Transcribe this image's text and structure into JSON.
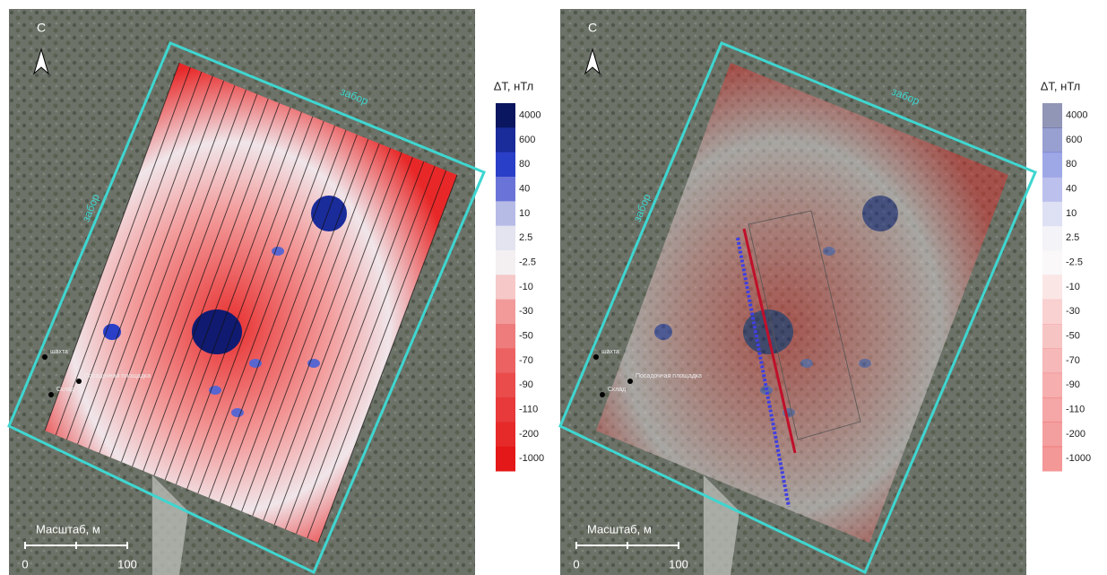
{
  "panels": [
    {
      "north": "С",
      "fence_labels": [
        "забор",
        "забор"
      ],
      "legend": {
        "title": "ΔT, нТл",
        "labels": [
          "4000",
          "600",
          "80",
          "40",
          "10",
          "2.5",
          "-2.5",
          "-10",
          "-30",
          "-50",
          "-70",
          "-90",
          "-110",
          "-200",
          "-1000"
        ]
      },
      "scale": {
        "title": "Масштаб, м",
        "ticks": [
          "0",
          "100"
        ]
      },
      "places": [
        "шахта",
        "Посадочная площадка",
        "Склад"
      ]
    },
    {
      "north": "С",
      "fence_labels": [
        "забор",
        "забор"
      ],
      "legend": {
        "title": "ΔT, нТл",
        "labels": [
          "4000",
          "600",
          "80",
          "40",
          "10",
          "2.5",
          "-2.5",
          "-10",
          "-30",
          "-50",
          "-70",
          "-90",
          "-110",
          "-200",
          "-1000"
        ]
      },
      "scale": {
        "title": "Масштаб, м",
        "ticks": [
          "0",
          "100"
        ]
      },
      "places": [
        "шахта",
        "Посадочная площадка",
        "Склад"
      ]
    }
  ]
}
